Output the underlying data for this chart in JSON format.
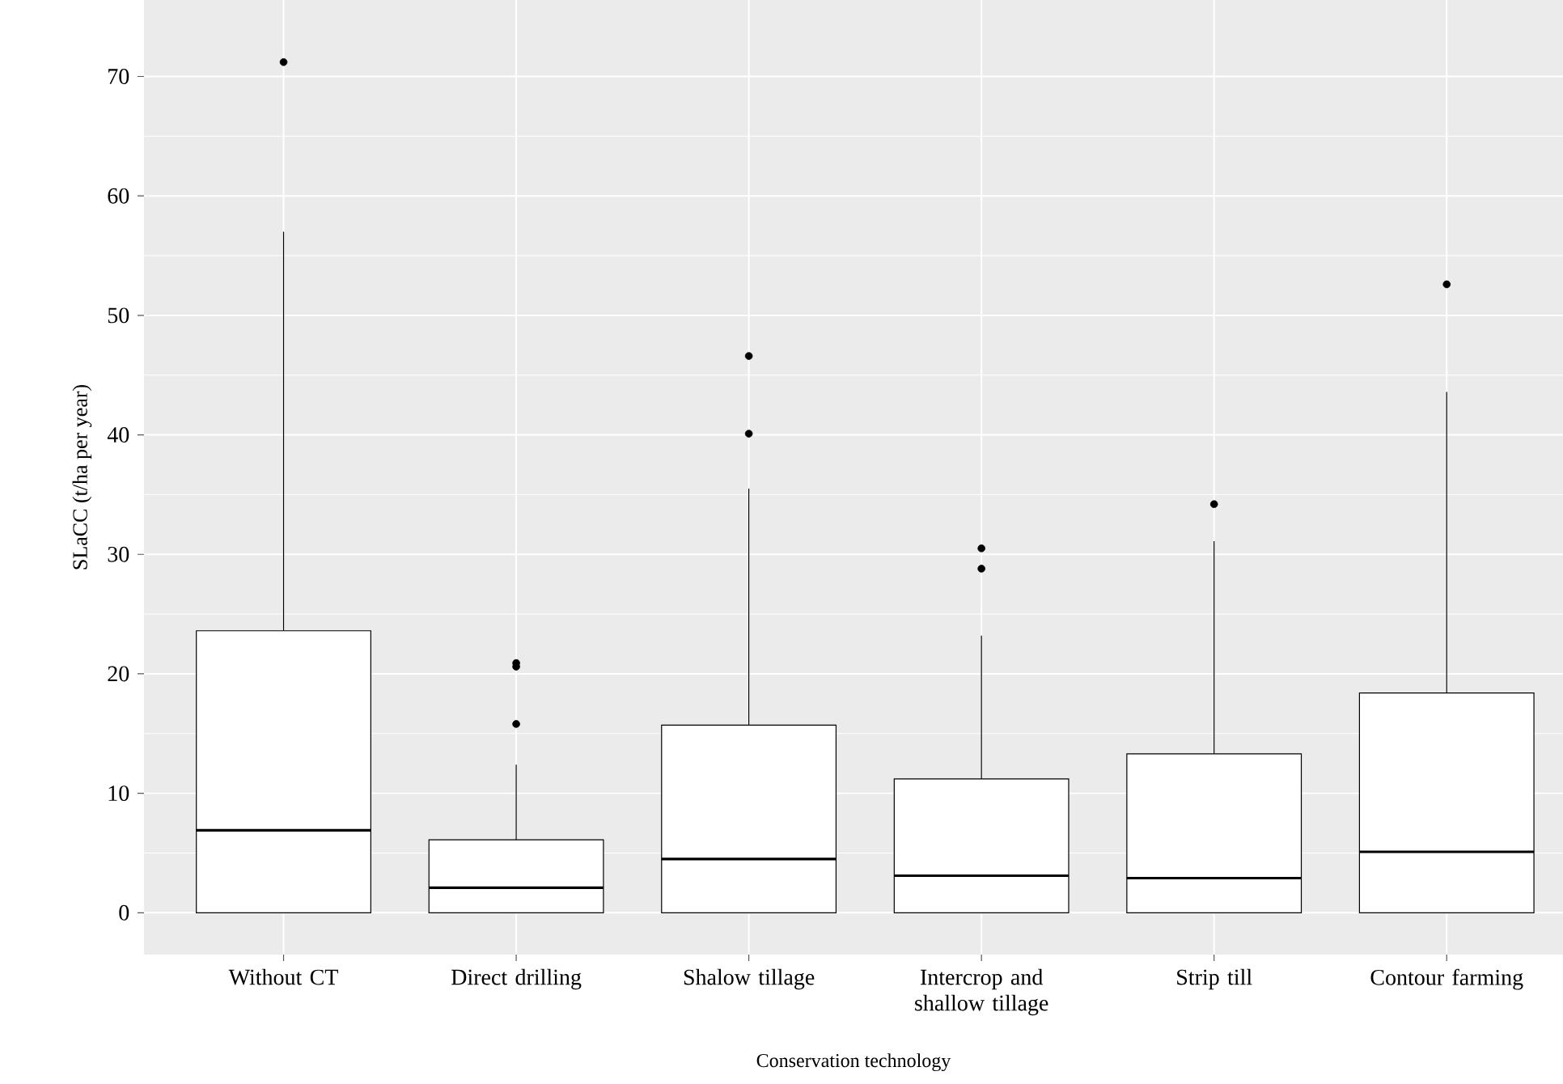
{
  "chart_data": {
    "type": "box",
    "xlabel": "Conservation technology",
    "ylabel": "SLaCC (t/ha per year)",
    "categories": [
      "Without CT",
      "Direct drilling",
      "Shalow tillage",
      "Intercrop and shallow tillage",
      "Strip till",
      "Contour farming"
    ],
    "boxes": [
      {
        "q1": 0,
        "median": 6.9,
        "q3": 23.6,
        "high": 57.0,
        "outliers": [
          71.2
        ]
      },
      {
        "q1": 0,
        "median": 2.1,
        "q3": 6.1,
        "high": 12.4,
        "outliers": [
          15.8,
          20.6,
          20.9
        ]
      },
      {
        "q1": 0,
        "median": 4.5,
        "q3": 15.7,
        "high": 35.5,
        "outliers": [
          40.1,
          46.6
        ]
      },
      {
        "q1": 0,
        "median": 3.1,
        "q3": 11.2,
        "high": 23.2,
        "outliers": [
          28.8,
          30.5
        ]
      },
      {
        "q1": 0,
        "median": 2.9,
        "q3": 13.3,
        "high": 31.1,
        "outliers": [
          34.2
        ]
      },
      {
        "q1": 0,
        "median": 5.1,
        "q3": 18.4,
        "high": 43.6,
        "outliers": [
          52.6
        ]
      }
    ],
    "ylim": [
      -3.5,
      76.4
    ],
    "yticks": [
      0,
      10,
      20,
      30,
      40,
      50,
      60,
      70
    ],
    "grid": true
  }
}
